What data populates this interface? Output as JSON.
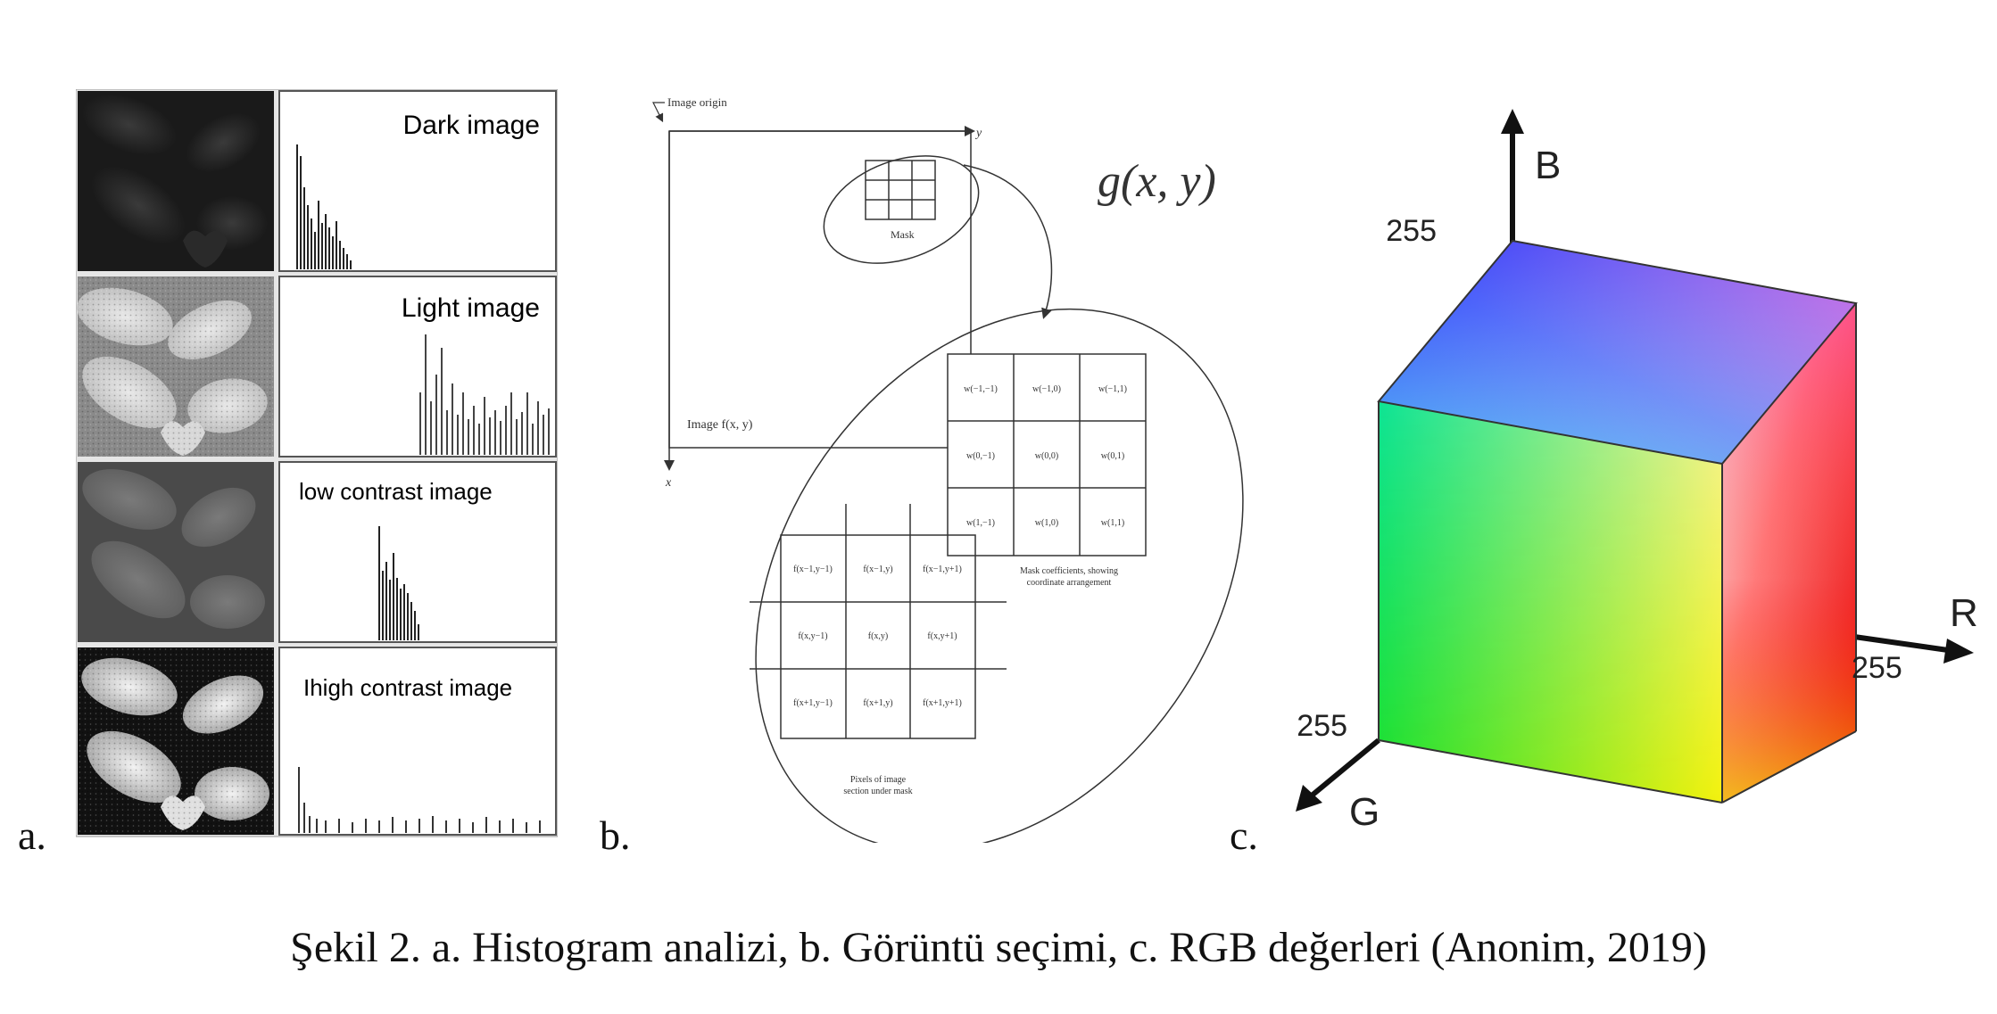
{
  "panels": {
    "a": {
      "letter": "a.",
      "histograms": [
        {
          "title": "Dark image"
        },
        {
          "title": "Light image"
        },
        {
          "title": "low contrast image"
        },
        {
          "title": "Ihigh contrast image"
        }
      ]
    },
    "b": {
      "letter": "b.",
      "image_origin": "Image origin",
      "axis_y": "y",
      "axis_x": "x",
      "g_label": "g(x, y)",
      "image_label": "Image f(x, y)",
      "mask_label": "Mask",
      "mask_coeffs": [
        "w(−1,−1)",
        "w(−1,0)",
        "w(−1,1)",
        "w(0,−1)",
        "w(0,0)",
        "w(0,1)",
        "w(1,−1)",
        "w(1,0)",
        "w(1,1)"
      ],
      "mask_caption_1": "Mask coefficients, showing",
      "mask_caption_2": "coordinate arrangement",
      "pixels": [
        "f(x−1,y−1)",
        "f(x−1,y)",
        "f(x−1,y+1)",
        "f(x,y−1)",
        "f(x,y)",
        "f(x,y+1)",
        "f(x+1,y−1)",
        "f(x+1,y)",
        "f(x+1,y+1)"
      ],
      "pixels_caption_1": "Pixels of image",
      "pixels_caption_2": "section under mask"
    },
    "c": {
      "letter": "c.",
      "axis_b": "B",
      "axis_r": "R",
      "axis_g": "G",
      "b_max": "255",
      "r_max": "255",
      "g_max": "255"
    }
  },
  "caption": "Şekil 2. a. Histogram analizi, b. Görüntü seçimi, c. RGB değerleri (Anonim, 2019)"
}
